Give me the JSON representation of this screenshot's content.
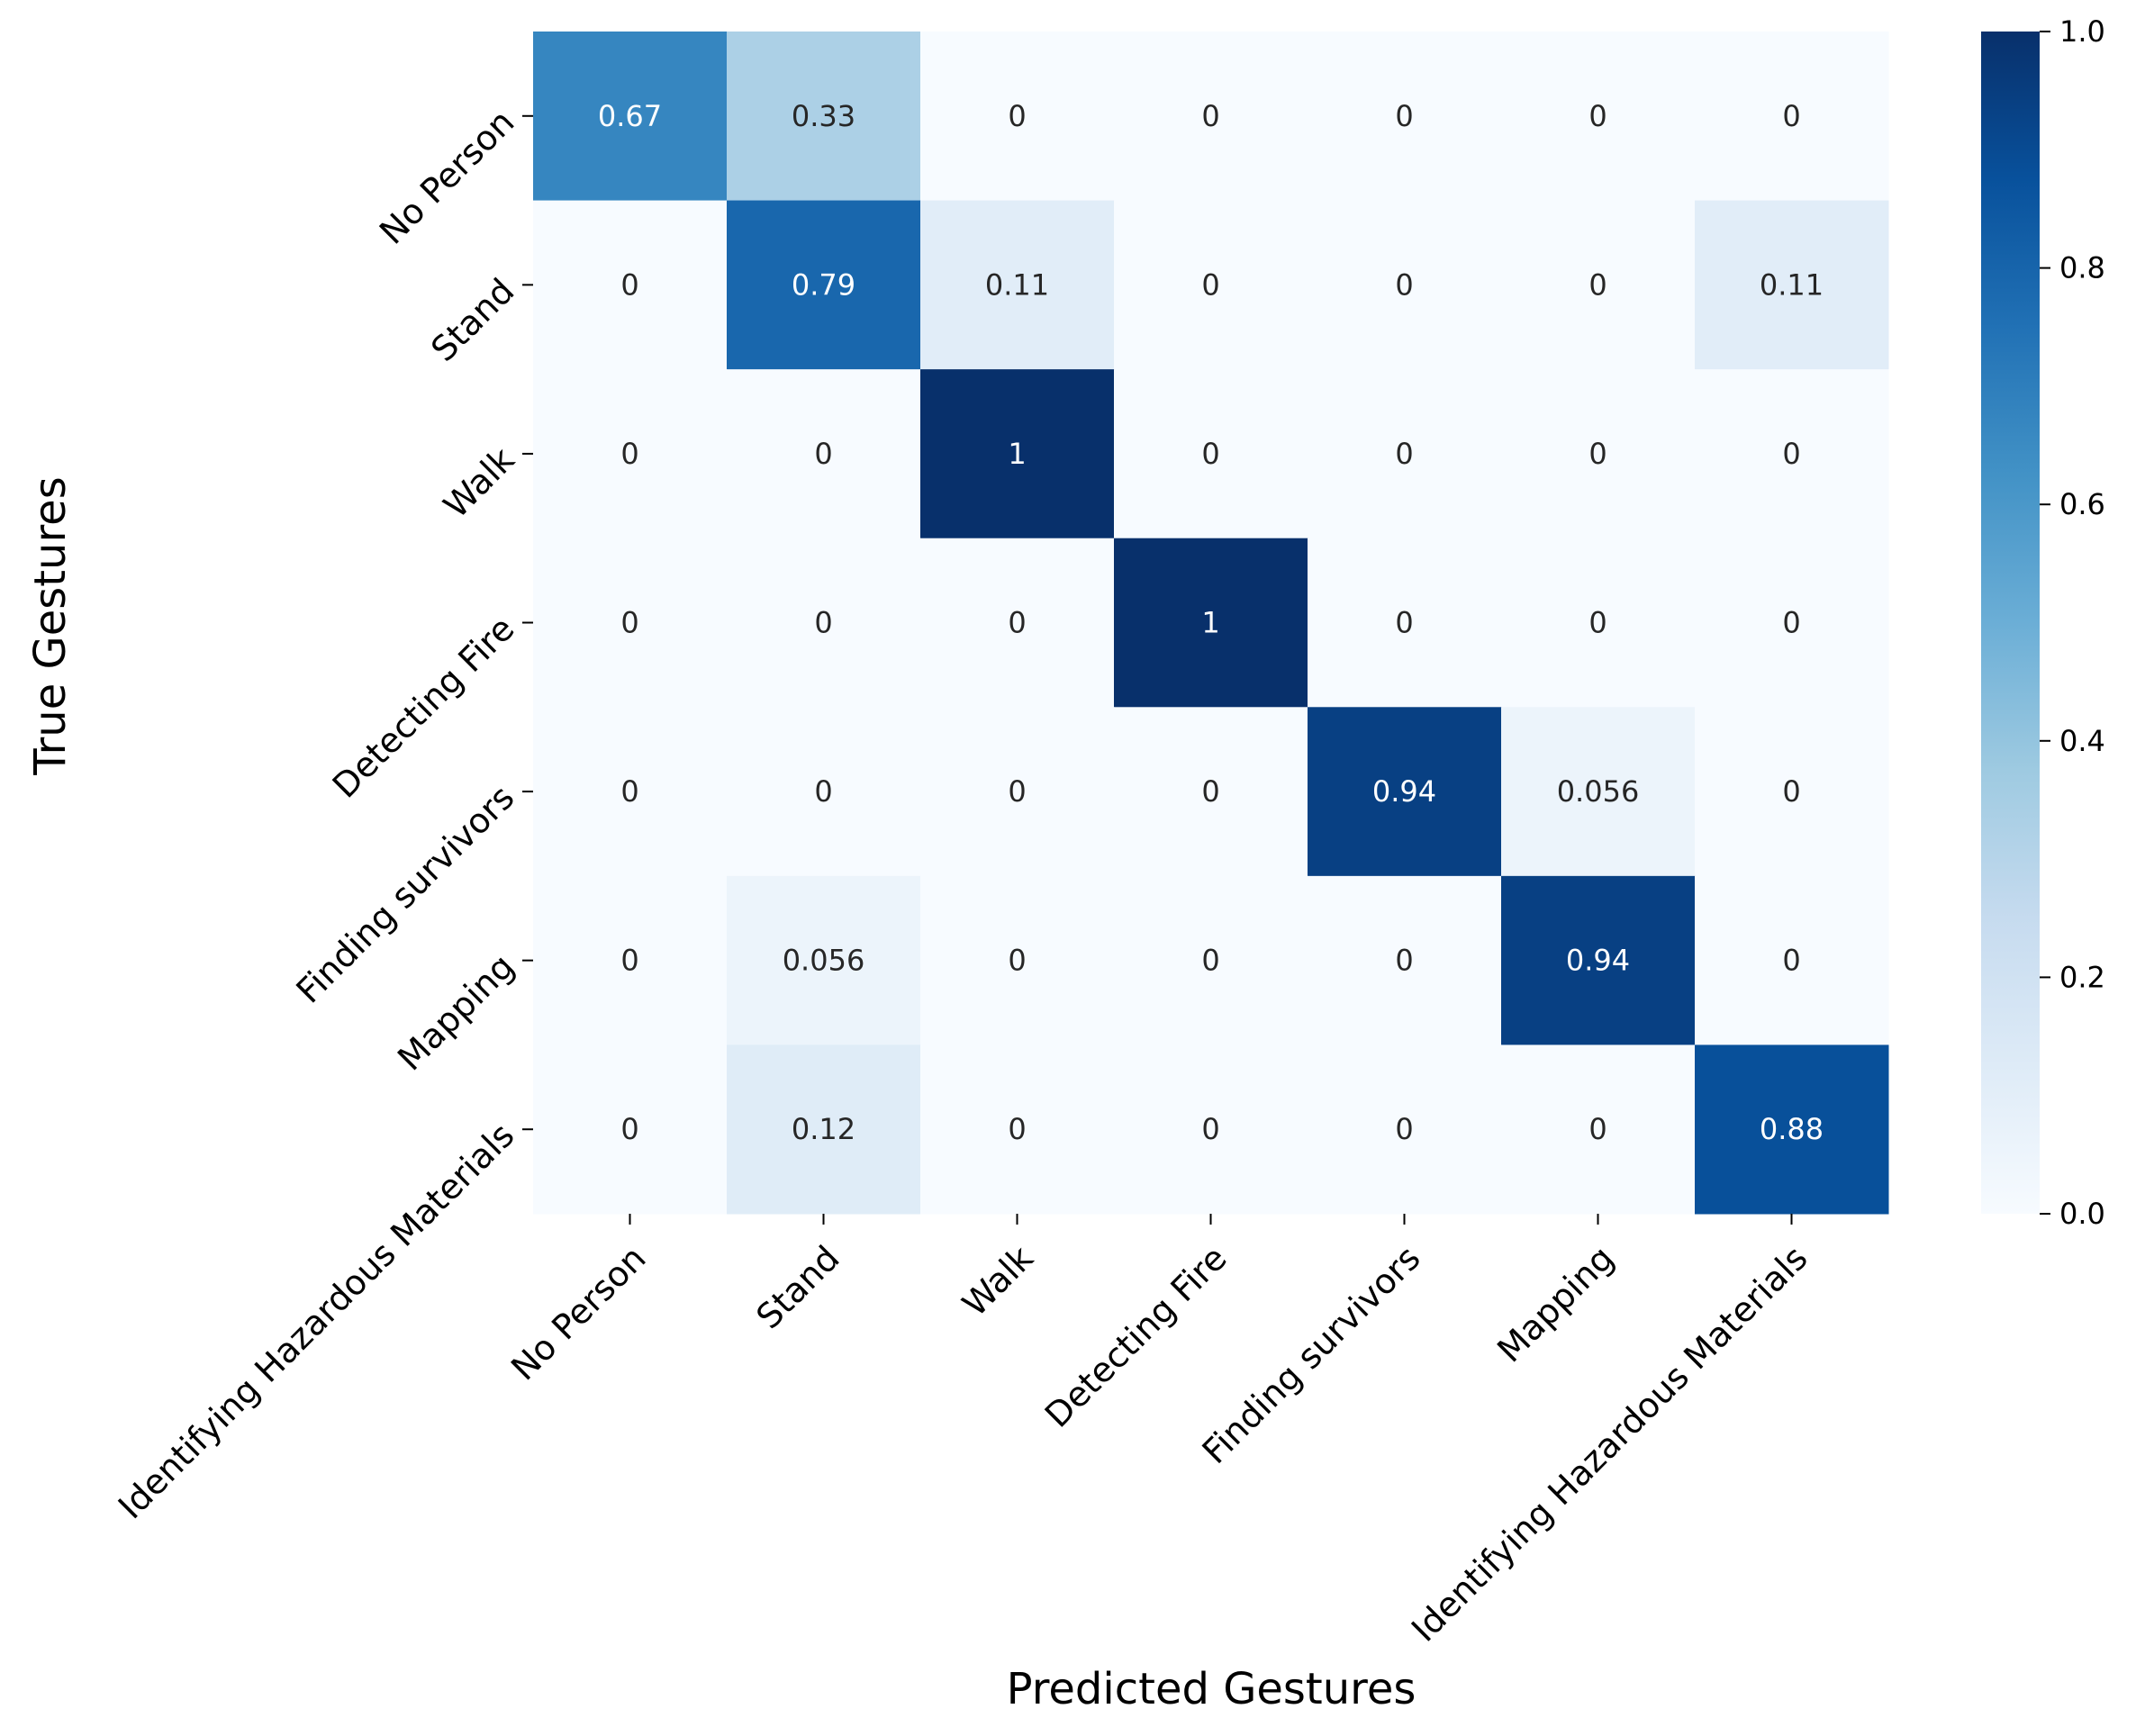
{
  "chart_data": {
    "type": "heatmap",
    "title": "",
    "xlabel": "Predicted Gestures",
    "ylabel": "True Gestures",
    "x_categories": [
      "No Person",
      "Stand",
      "Walk",
      "Detecting Fire",
      "Finding survivors",
      "Mapping",
      "Identifying Hazardous Materials"
    ],
    "y_categories": [
      "No Person",
      "Stand",
      "Walk",
      "Detecting Fire",
      "Finding survivors",
      "Mapping",
      "Identifying Hazardous Materials"
    ],
    "cell_labels": [
      [
        "0.67",
        "0.33",
        "0",
        "0",
        "0",
        "0",
        "0"
      ],
      [
        "0",
        "0.79",
        "0.11",
        "0",
        "0",
        "0",
        "0.11"
      ],
      [
        "0",
        "0",
        "1",
        "0",
        "0",
        "0",
        "0"
      ],
      [
        "0",
        "0",
        "0",
        "1",
        "0",
        "0",
        "0"
      ],
      [
        "0",
        "0",
        "0",
        "0",
        "0.94",
        "0.056",
        "0"
      ],
      [
        "0",
        "0.056",
        "0",
        "0",
        "0",
        "0.94",
        "0"
      ],
      [
        "0",
        "0.12",
        "0",
        "0",
        "0",
        "0",
        "0.88"
      ]
    ],
    "values": [
      [
        0.67,
        0.33,
        0,
        0,
        0,
        0,
        0
      ],
      [
        0,
        0.79,
        0.11,
        0,
        0,
        0,
        0.11
      ],
      [
        0,
        0,
        1,
        0,
        0,
        0,
        0
      ],
      [
        0,
        0,
        0,
        1,
        0,
        0,
        0
      ],
      [
        0,
        0,
        0,
        0,
        0.94,
        0.056,
        0
      ],
      [
        0,
        0.056,
        0,
        0,
        0,
        0.94,
        0
      ],
      [
        0,
        0.12,
        0,
        0,
        0,
        0,
        0.88
      ]
    ],
    "colorbar": {
      "range": [
        0.0,
        1.0
      ],
      "ticks": [
        0.0,
        0.2,
        0.4,
        0.6,
        0.8,
        1.0
      ],
      "tick_labels": [
        "0.0",
        "0.2",
        "0.4",
        "0.6",
        "0.8",
        "1.0"
      ],
      "colormap": "Blues",
      "colormap_stops": [
        "#f7fbff",
        "#deebf7",
        "#c6dbef",
        "#9ecae1",
        "#6baed6",
        "#4292c6",
        "#2171b5",
        "#08519c",
        "#08306b"
      ]
    },
    "grid": false
  }
}
